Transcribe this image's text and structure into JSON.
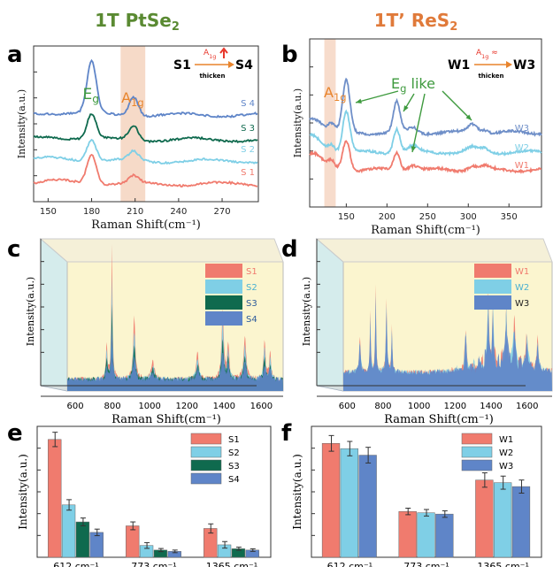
{
  "figure": {
    "colors": {
      "left_title": "#5a8a32",
      "right_title": "#e07a3a",
      "red": "#f07b6e",
      "lightblue": "#7fcfe6",
      "darkgreen": "#0f6a4e",
      "blue": "#5f85c8",
      "midblue": "#8faad8",
      "peach": "#f3cdb6",
      "spike_blue": "#6aa0dc",
      "axis": "#333333",
      "eg_green": "#3e9a3e",
      "arrow_red": "#e8382c",
      "arrow_orange": "#e8842c"
    },
    "left_title": {
      "main": "1T PtSe",
      "sub": "2"
    },
    "right_title": {
      "main": "1T’ ReS",
      "sub": "2"
    }
  },
  "chart_data": [
    {
      "panel": "a",
      "type": "line",
      "xlabel": "Raman Shift(cm⁻¹)",
      "ylabel": "Intensity(a.u.)",
      "xlim": [
        140,
        295
      ],
      "xticks": [
        150,
        180,
        210,
        240,
        270
      ],
      "series": [
        {
          "name": "S 1",
          "color": "#f07b6e",
          "offset": 0,
          "bump1": 34,
          "bump2": 8
        },
        {
          "name": "S 2",
          "color": "#7fcfe6",
          "offset": 26,
          "bump1": 24,
          "bump2": 10
        },
        {
          "name": "S 3",
          "color": "#0f6a4e",
          "offset": 50,
          "bump1": 28,
          "bump2": 16
        },
        {
          "name": "S 4",
          "color": "#5f85c8",
          "offset": 78,
          "bump1": 58,
          "bump2": 22
        }
      ],
      "peak1_x": 180,
      "peak2_x": 209,
      "highlight_range": [
        200,
        217
      ],
      "annotations": {
        "eg": {
          "main": "E",
          "sub": "g"
        },
        "a1g": {
          "main": "A",
          "sub": "1g"
        },
        "inset_left": "S1",
        "inset_right": "S4",
        "inset_mid": "thicken",
        "inset_tag": {
          "main": "A",
          "sub": "1g"
        }
      }
    },
    {
      "panel": "b",
      "type": "line",
      "xlabel": "Raman Shift(cm⁻¹)",
      "ylabel": "Intensity(a.u.)",
      "xlim": [
        105,
        390
      ],
      "xticks": [
        150,
        200,
        250,
        300,
        350
      ],
      "series": [
        {
          "name": "W1",
          "color": "#f07b6e",
          "offset": 0
        },
        {
          "name": "W2",
          "color": "#7fcfe6",
          "offset": 20
        },
        {
          "name": "W3",
          "color": "#6f8fc8",
          "offset": 42
        }
      ],
      "highlight_range": [
        123,
        137
      ],
      "annotations": {
        "a1g": {
          "main": "A",
          "sub": "1g"
        },
        "eg_like": {
          "main": "E",
          "sub": "g",
          "tail": " like"
        },
        "inset_left": "W1",
        "inset_right": "W3",
        "inset_mid": "thicken",
        "inset_tag": {
          "main": "A",
          "sub": "1g",
          "tail": " ≈"
        }
      }
    },
    {
      "panel": "c",
      "type": "area",
      "xlabel": "Raman Shift(cm⁻¹)",
      "ylabel": "Intensity(a.u.)",
      "xlim": [
        500,
        1660
      ],
      "xticks": [
        600,
        800,
        1000,
        1200,
        1400,
        1600
      ],
      "legend": [
        "S1",
        "S2",
        "S3",
        "S4"
      ],
      "legend_colors": [
        "#f07b6e",
        "#7fcfe6",
        "#0f6a4e",
        "#5f85c8"
      ],
      "legend_position": "top-right"
    },
    {
      "panel": "d",
      "type": "area",
      "xlabel": "Raman Shift(cm⁻¹)",
      "ylabel": "Intensity(a.u.)",
      "xlim": [
        520,
        1680
      ],
      "xticks": [
        600,
        800,
        1000,
        1200,
        1400,
        1600
      ],
      "legend": [
        "W1",
        "W2",
        "W3"
      ],
      "legend_colors": [
        "#f07b6e",
        "#7fcfe6",
        "#5f85c8"
      ],
      "legend_position": "top-right"
    },
    {
      "panel": "e",
      "type": "bar",
      "ylabel": "Intensity(a.u.)",
      "categories": [
        "612 cm⁻¹",
        "773 cm⁻¹",
        "1365 cm⁻¹"
      ],
      "ylim": [
        0,
        10
      ],
      "series": [
        {
          "name": "S1",
          "color": "#f07b6e",
          "values": [
            9.0,
            2.4,
            2.2
          ],
          "errors": [
            0.55,
            0.3,
            0.35
          ]
        },
        {
          "name": "S2",
          "color": "#7fcfe6",
          "values": [
            4.0,
            0.9,
            0.95
          ],
          "errors": [
            0.4,
            0.22,
            0.25
          ]
        },
        {
          "name": "S3",
          "color": "#0f6a4e",
          "values": [
            2.7,
            0.55,
            0.65
          ],
          "errors": [
            0.3,
            0.12,
            0.12
          ]
        },
        {
          "name": "S4",
          "color": "#5f85c8",
          "values": [
            1.9,
            0.45,
            0.55
          ],
          "errors": [
            0.25,
            0.1,
            0.1
          ]
        }
      ],
      "legend_position": "top-right"
    },
    {
      "panel": "f",
      "type": "bar",
      "ylabel": "Intensity(a.u.)",
      "categories": [
        "612 cm⁻¹",
        "773 cm⁻¹",
        "1365 cm⁻¹"
      ],
      "ylim": [
        0,
        10
      ],
      "series": [
        {
          "name": "W1",
          "color": "#f07b6e",
          "values": [
            8.7,
            3.5,
            5.9
          ],
          "errors": [
            0.6,
            0.25,
            0.55
          ]
        },
        {
          "name": "W2",
          "color": "#7fcfe6",
          "values": [
            8.3,
            3.4,
            5.7
          ],
          "errors": [
            0.55,
            0.25,
            0.5
          ]
        },
        {
          "name": "W3",
          "color": "#5f85c8",
          "values": [
            7.8,
            3.3,
            5.4
          ],
          "errors": [
            0.6,
            0.25,
            0.5
          ]
        }
      ],
      "legend_position": "top-right"
    }
  ]
}
